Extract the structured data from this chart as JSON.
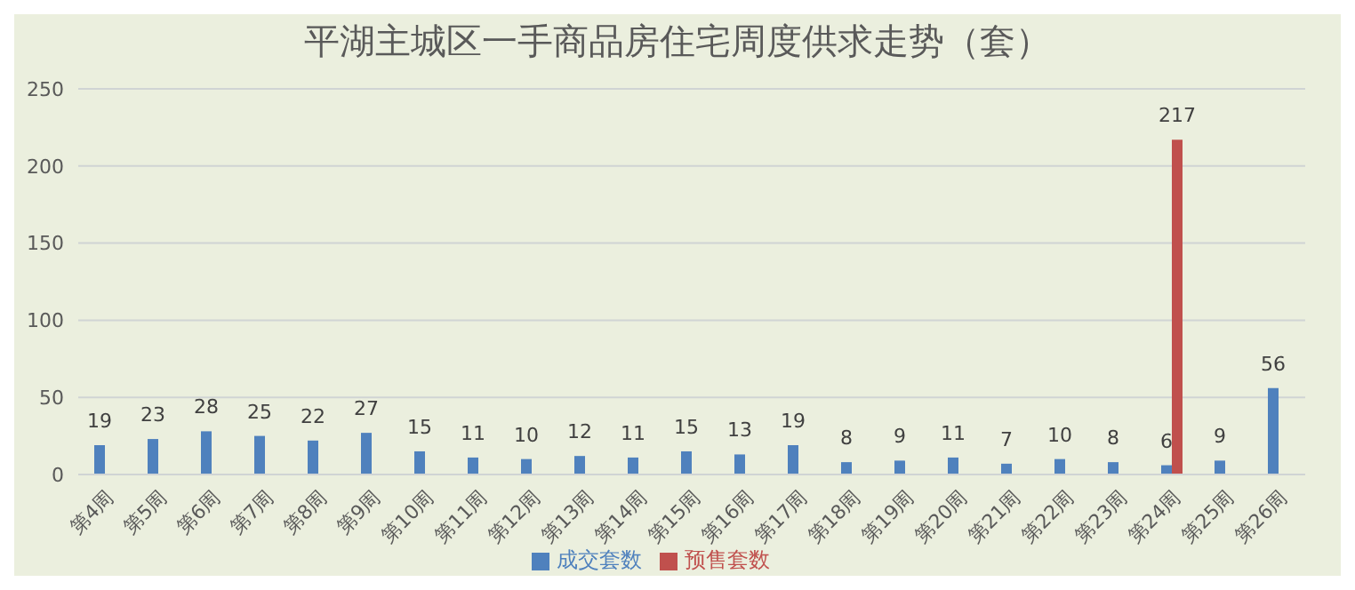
{
  "chart_data": {
    "type": "bar",
    "title": "平湖主城区一手商品房住宅周度供求走势（套）",
    "categories": [
      "第4周",
      "第5周",
      "第6周",
      "第7周",
      "第8周",
      "第9周",
      "第10周",
      "第11周",
      "第12周",
      "第13周",
      "第14周",
      "第15周",
      "第16周",
      "第17周",
      "第18周",
      "第19周",
      "第20周",
      "第21周",
      "第22周",
      "第23周",
      "第24周",
      "第25周",
      "第26周"
    ],
    "series": [
      {
        "name": "成交套数",
        "color": "#4f81bd",
        "values": [
          19,
          23,
          28,
          25,
          22,
          27,
          15,
          11,
          10,
          12,
          11,
          15,
          13,
          19,
          8,
          9,
          11,
          7,
          10,
          8,
          6,
          9,
          56
        ]
      },
      {
        "name": "预售套数",
        "color": "#c0504d",
        "values": [
          null,
          null,
          null,
          null,
          null,
          null,
          null,
          null,
          null,
          null,
          null,
          null,
          null,
          null,
          null,
          null,
          null,
          null,
          null,
          null,
          217,
          null,
          null
        ]
      }
    ],
    "ylim": [
      0,
      250
    ],
    "yticks": [
      0,
      50,
      100,
      150,
      200,
      250
    ],
    "grid": "y",
    "legend": "bottom",
    "data_labels": true
  }
}
